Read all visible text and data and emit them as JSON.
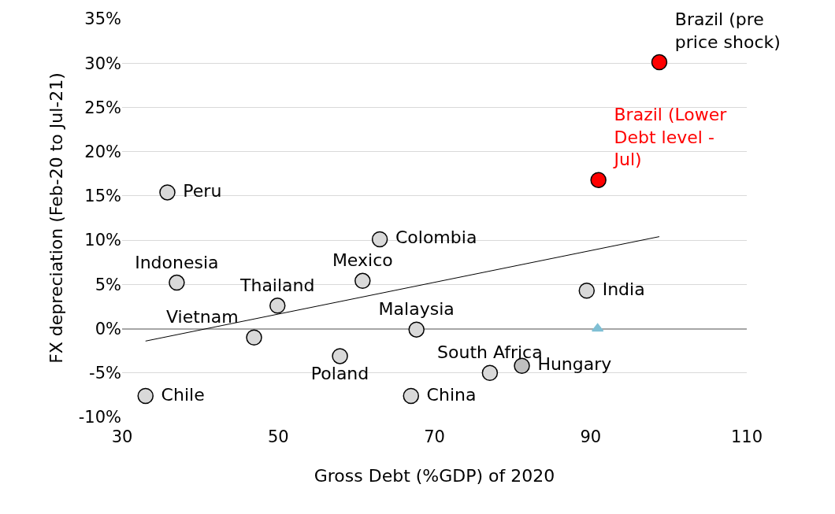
{
  "chart_data": {
    "type": "scatter",
    "xlabel": "Gross Debt (%GDP) of 2020",
    "ylabel": "FX depreciation (Feb-20 to Jul-21)",
    "xlim": [
      30,
      110
    ],
    "xticks": [
      30,
      50,
      70,
      90,
      110
    ],
    "ylim": [
      -10,
      35
    ],
    "yticks": [
      {
        "value": -10,
        "label": "-10%"
      },
      {
        "value": -5,
        "label": "-5%"
      },
      {
        "value": 0,
        "label": "0%"
      },
      {
        "value": 5,
        "label": "5%"
      },
      {
        "value": 10,
        "label": "10%"
      },
      {
        "value": 15,
        "label": "15%"
      },
      {
        "value": 20,
        "label": "20%"
      },
      {
        "value": 25,
        "label": "25%"
      },
      {
        "value": 30,
        "label": "30%"
      },
      {
        "value": 35,
        "label": "35%"
      }
    ],
    "grid": "y",
    "legend": false,
    "marker": "circle",
    "series": [
      {
        "name": "Peru",
        "color": "#d9d9d9",
        "x": [
          35.8
        ],
        "values": [
          15.4
        ]
      },
      {
        "name": "Indonesia",
        "color": "#d9d9d9",
        "x": [
          37.0
        ],
        "values": [
          5.2
        ]
      },
      {
        "name": "Chile",
        "color": "#d9d9d9",
        "x": [
          33.0
        ],
        "values": [
          -7.6
        ]
      },
      {
        "name": "Vietnam",
        "color": "#d9d9d9",
        "x": [
          46.9
        ],
        "values": [
          -1.0
        ]
      },
      {
        "name": "Thailand",
        "color": "#d9d9d9",
        "x": [
          49.9
        ],
        "values": [
          2.6
        ]
      },
      {
        "name": "Poland",
        "color": "#d9d9d9",
        "x": [
          57.9
        ],
        "values": [
          -3.1
        ]
      },
      {
        "name": "Mexico",
        "color": "#d9d9d9",
        "x": [
          60.8
        ],
        "values": [
          5.4
        ]
      },
      {
        "name": "Colombia",
        "color": "#d9d9d9",
        "x": [
          63.0
        ],
        "values": [
          10.1
        ]
      },
      {
        "name": "Malaysia",
        "color": "#d9d9d9",
        "x": [
          67.7
        ],
        "values": [
          -0.1
        ]
      },
      {
        "name": "China",
        "color": "#d9d9d9",
        "x": [
          67.0
        ],
        "values": [
          -7.6
        ]
      },
      {
        "name": "South Africa",
        "color": "#d9d9d9",
        "x": [
          77.1
        ],
        "values": [
          -5.0
        ]
      },
      {
        "name": "Hungary",
        "color": "#bfbfbf",
        "x": [
          81.2
        ],
        "values": [
          -4.2
        ]
      },
      {
        "name": "India",
        "color": "#d9d9d9",
        "x": [
          89.5
        ],
        "values": [
          4.3
        ]
      },
      {
        "name": "Brazil (pre price shock)",
        "color": "#ff0000",
        "x": [
          98.8
        ],
        "values": [
          30.1
        ]
      },
      {
        "name": "Brazil (Lower Debt level - Jul)",
        "color": "#ff0000",
        "x": [
          91.0
        ],
        "values": [
          16.8
        ]
      },
      {
        "color": "#7fbfd4",
        "marker": "triangle",
        "x": [
          90.9
        ],
        "values": [
          0
        ]
      },
      {
        "type": "line",
        "marker": "none",
        "color": "#000000",
        "x": [
          33.0,
          98.8
        ],
        "values": [
          -1.4,
          10.4
        ]
      }
    ]
  }
}
